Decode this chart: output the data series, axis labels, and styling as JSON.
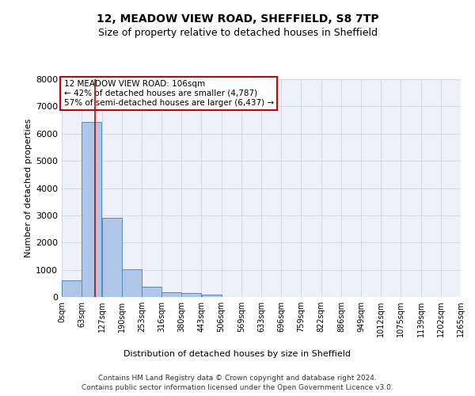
{
  "title1": "12, MEADOW VIEW ROAD, SHEFFIELD, S8 7TP",
  "title2": "Size of property relative to detached houses in Sheffield",
  "xlabel": "Distribution of detached houses by size in Sheffield",
  "ylabel": "Number of detached properties",
  "property_size": 106,
  "property_label": "12 MEADOW VIEW ROAD: 106sqm",
  "pct_smaller": 42,
  "n_smaller": 4787,
  "pct_larger": 57,
  "n_larger": 6437,
  "bin_edges": [
    0,
    63,
    127,
    190,
    253,
    316,
    380,
    443,
    506,
    569,
    633,
    696,
    759,
    822,
    886,
    949,
    1012,
    1075,
    1139,
    1202,
    1265
  ],
  "bar_heights": [
    620,
    6420,
    2920,
    1010,
    380,
    175,
    140,
    95,
    0,
    0,
    0,
    0,
    0,
    0,
    0,
    0,
    0,
    0,
    0,
    0
  ],
  "bar_color": "#aec6e8",
  "bar_edge_color": "#5a8ab8",
  "vline_color": "#cc0000",
  "vline_x": 106,
  "annotation_box_color": "#cc0000",
  "grid_color": "#c8d0dc",
  "background_color": "#eef2f8",
  "ylim": [
    0,
    8000
  ],
  "yticks": [
    0,
    1000,
    2000,
    3000,
    4000,
    5000,
    6000,
    7000,
    8000
  ],
  "footer_line1": "Contains HM Land Registry data © Crown copyright and database right 2024.",
  "footer_line2": "Contains public sector information licensed under the Open Government Licence v3.0."
}
